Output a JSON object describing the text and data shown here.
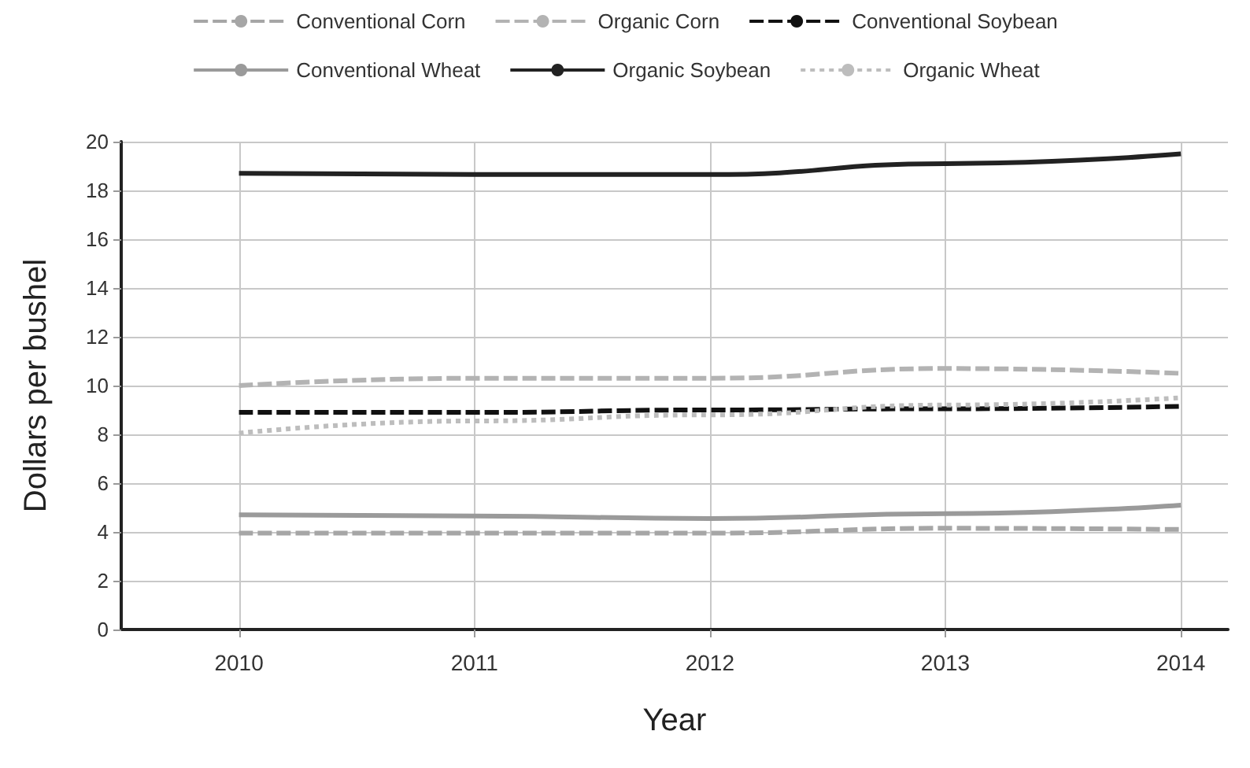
{
  "chart_data": {
    "type": "line",
    "xlabel": "Year",
    "ylabel": "Dollars per bushel",
    "x": [
      2010,
      2011,
      2012,
      2013,
      2014
    ],
    "series": [
      {
        "name": "Conventional Corn",
        "color": "#a6a6a6",
        "line_style": "dashed",
        "values": [
          3.95,
          3.95,
          3.95,
          4.15,
          4.1
        ]
      },
      {
        "name": "Organic Corn",
        "color": "#b3b3b3",
        "line_style": "dashed",
        "values": [
          10.0,
          10.3,
          10.3,
          10.7,
          10.5
        ]
      },
      {
        "name": "Conventional Soybean",
        "color": "#111111",
        "line_style": "dashed",
        "values": [
          8.9,
          8.9,
          9.0,
          9.05,
          9.15
        ]
      },
      {
        "name": "Conventional Wheat",
        "color": "#9a9a9a",
        "line_style": "solid",
        "values": [
          4.7,
          4.65,
          4.55,
          4.75,
          5.1
        ]
      },
      {
        "name": "Organic Soybean",
        "color": "#222222",
        "line_style": "solid",
        "values": [
          18.7,
          18.65,
          18.65,
          19.1,
          19.5
        ]
      },
      {
        "name": "Organic Wheat",
        "color": "#bdbdbd",
        "line_style": "dotted",
        "values": [
          8.05,
          8.55,
          8.8,
          9.2,
          9.5
        ]
      }
    ],
    "xlim": [
      2009.5,
      2014.2
    ],
    "xticks": [
      2010,
      2011,
      2012,
      2013,
      2014
    ],
    "ylim": [
      0,
      20
    ],
    "yticks": [
      0,
      2,
      4,
      6,
      8,
      10,
      12,
      14,
      16,
      18,
      20
    ],
    "grid": true,
    "legend": "top",
    "marker": "none"
  }
}
